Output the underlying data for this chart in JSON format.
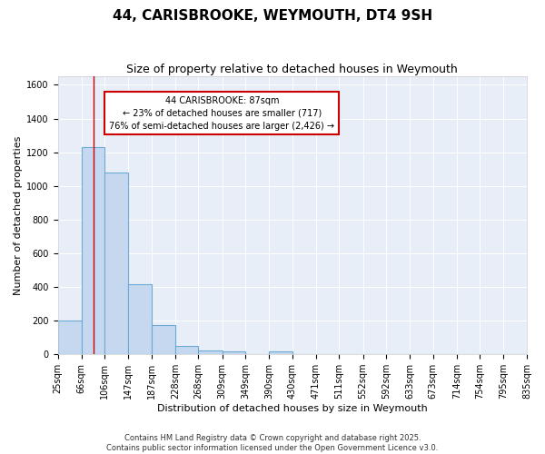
{
  "title": "44, CARISBROOKE, WEYMOUTH, DT4 9SH",
  "subtitle": "Size of property relative to detached houses in Weymouth",
  "xlabel": "Distribution of detached houses by size in Weymouth",
  "ylabel": "Number of detached properties",
  "bar_values": [
    200,
    1230,
    1080,
    415,
    175,
    50,
    25,
    20,
    0,
    20,
    0,
    0,
    0,
    0,
    0,
    0,
    0,
    0,
    0,
    0
  ],
  "bin_edges": [
    25,
    66,
    106,
    147,
    187,
    228,
    268,
    309,
    349,
    390,
    430,
    471,
    511,
    552,
    592,
    633,
    673,
    714,
    754,
    795,
    835
  ],
  "tick_labels": [
    "25sqm",
    "66sqm",
    "106sqm",
    "147sqm",
    "187sqm",
    "228sqm",
    "268sqm",
    "309sqm",
    "349sqm",
    "390sqm",
    "430sqm",
    "471sqm",
    "511sqm",
    "552sqm",
    "592sqm",
    "633sqm",
    "673sqm",
    "714sqm",
    "754sqm",
    "795sqm",
    "835sqm"
  ],
  "bar_color": "#c5d8f0",
  "bar_edge_color": "#6aaad4",
  "red_line_x": 87,
  "ylim": [
    0,
    1650
  ],
  "yticks": [
    0,
    200,
    400,
    600,
    800,
    1000,
    1200,
    1400,
    1600
  ],
  "annotation_text": "44 CARISBROOKE: 87sqm\n← 23% of detached houses are smaller (717)\n76% of semi-detached houses are larger (2,426) →",
  "annotation_box_color": "#ffffff",
  "annotation_box_edge": "#cc0000",
  "bg_color": "#e8eef7",
  "footer_text": "Contains HM Land Registry data © Crown copyright and database right 2025.\nContains public sector information licensed under the Open Government Licence v3.0.",
  "title_fontsize": 11,
  "subtitle_fontsize": 9,
  "ylabel_fontsize": 8,
  "xlabel_fontsize": 8,
  "tick_fontsize": 7,
  "annot_fontsize": 7,
  "footer_fontsize": 6
}
